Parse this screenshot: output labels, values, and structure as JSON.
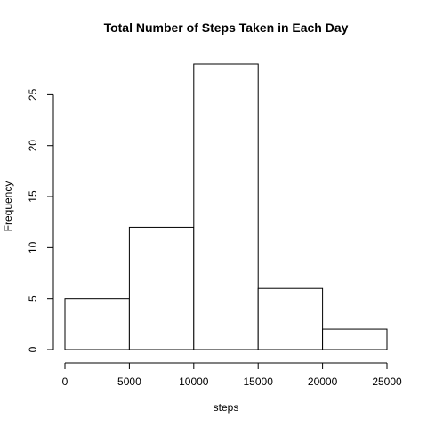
{
  "chart_data": {
    "type": "bar",
    "title": "Total Number of Steps Taken in Each Day",
    "xlabel": "steps",
    "ylabel": "Frequency",
    "bins": [
      {
        "from": 0,
        "to": 5000,
        "count": 5
      },
      {
        "from": 5000,
        "to": 10000,
        "count": 12
      },
      {
        "from": 10000,
        "to": 15000,
        "count": 28
      },
      {
        "from": 15000,
        "to": 20000,
        "count": 6
      },
      {
        "from": 20000,
        "to": 25000,
        "count": 2
      }
    ],
    "xlim": [
      0,
      25000
    ],
    "ylim": [
      0,
      28
    ],
    "x_ticks": [
      0,
      5000,
      10000,
      15000,
      20000,
      25000
    ],
    "y_ticks": [
      0,
      5,
      10,
      15,
      20,
      25
    ],
    "grid": false
  }
}
